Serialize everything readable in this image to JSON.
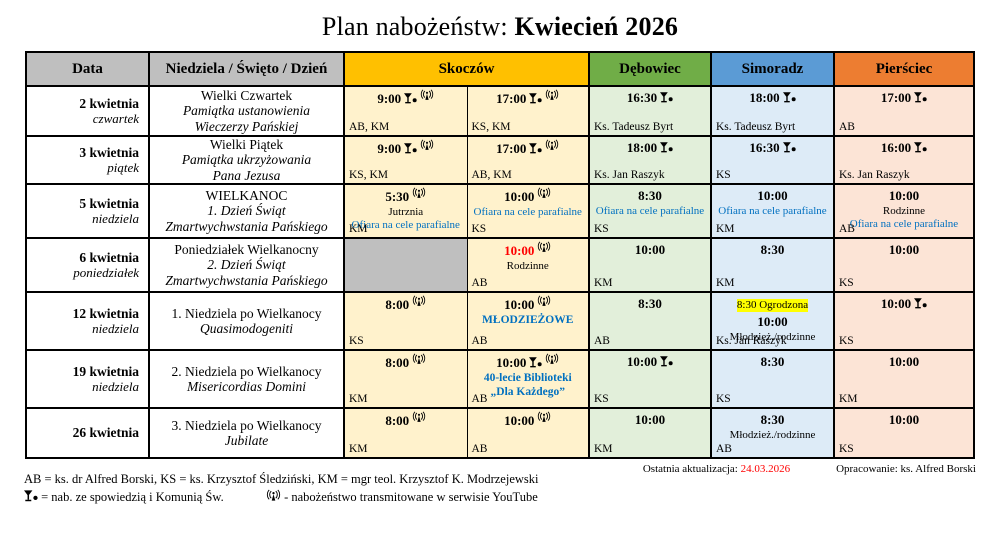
{
  "title": {
    "prefix": "Plan nabożeństw: ",
    "month": "Kwiecień 2026"
  },
  "columns": {
    "data": "Data",
    "day_desc": "Niedziela / Święto / Dzień",
    "parishes": [
      {
        "name": "Skoczów",
        "header_color": "#FFC000",
        "cell_color": "#FFF2CC"
      },
      {
        "name": "Dębowiec",
        "header_color": "#70AD47",
        "cell_color": "#E2EFDA"
      },
      {
        "name": "Simoradz",
        "header_color": "#5B9BD5",
        "cell_color": "#DDEBF7"
      },
      {
        "name": "Pierściec",
        "header_color": "#ED7D31",
        "cell_color": "#FCE4D6"
      }
    ]
  },
  "colors": {
    "note_blue": "#0070C0",
    "alert_red": "#FF0000",
    "highlight_yellow": "#FFFF00",
    "empty_gray": "#BFBFBF"
  },
  "rows": [
    {
      "date": "2 kwietnia",
      "day": "czwartek",
      "desc": [
        {
          "t": "Wielki Czwartek",
          "i": false
        },
        {
          "t": "Pamiątka ustanowienia",
          "i": true
        },
        {
          "t": "Wieczerzy Pańskiej",
          "i": true
        }
      ],
      "cells": [
        {
          "time": "9:00",
          "chalice": true,
          "broadcast": true,
          "who": "AB, KM"
        },
        {
          "time": "17:00",
          "chalice": true,
          "broadcast": true,
          "who": "KS, KM"
        },
        {
          "time": "16:30",
          "chalice": true,
          "who": "Ks. Tadeusz Byrt"
        },
        {
          "time": "18:00",
          "chalice": true,
          "who": "Ks. Tadeusz Byrt"
        },
        {
          "time": "17:00",
          "chalice": true,
          "who": "AB"
        }
      ]
    },
    {
      "date": "3 kwietnia",
      "day": "piątek",
      "desc": [
        {
          "t": "Wielki Piątek",
          "i": false
        },
        {
          "t": "Pamiątka ukrzyżowania",
          "i": true
        },
        {
          "t": "Pana Jezusa",
          "i": true
        }
      ],
      "cells": [
        {
          "time": "9:00",
          "chalice": true,
          "broadcast": true,
          "who": "KS, KM"
        },
        {
          "time": "17:00",
          "chalice": true,
          "broadcast": true,
          "who": "AB, KM"
        },
        {
          "time": "18:00",
          "chalice": true,
          "who": "Ks. Jan Raszyk"
        },
        {
          "time": "16:30",
          "chalice": true,
          "who": "KS"
        },
        {
          "time": "16:00",
          "chalice": true,
          "who": "Ks. Jan Raszyk"
        }
      ]
    },
    {
      "date": "5 kwietnia",
      "day": "niedziela",
      "desc": [
        {
          "t": "WIELKANOC",
          "i": false
        },
        {
          "t": "1. Dzień Świąt",
          "i": true
        },
        {
          "t": "Zmartwychwstania Pańskiego",
          "i": true
        }
      ],
      "cells": [
        {
          "time": "5:30",
          "broadcast": true,
          "lines": [
            {
              "t": "Jutrznia",
              "s": "plain"
            },
            {
              "t": "Ofiara na cele parafialne",
              "s": "blue"
            }
          ],
          "who": "KM"
        },
        {
          "time": "10:00",
          "broadcast": true,
          "lines": [
            {
              "t": "Ofiara na cele parafialne",
              "s": "blue"
            }
          ],
          "who": "KS"
        },
        {
          "time": "8:30",
          "lines": [
            {
              "t": "Ofiara na cele parafialne",
              "s": "blue"
            }
          ],
          "who": "KS"
        },
        {
          "time": "10:00",
          "lines": [
            {
              "t": "Ofiara na cele parafialne",
              "s": "blue"
            }
          ],
          "who": "KM"
        },
        {
          "time": "10:00",
          "lines": [
            {
              "t": "Rodzinne",
              "s": "plain"
            },
            {
              "t": "Ofiara na cele parafialne",
              "s": "blue"
            }
          ],
          "who": "AB"
        }
      ]
    },
    {
      "date": "6 kwietnia",
      "day": "poniedziałek",
      "desc": [
        {
          "t": "Poniedziałek Wielkanocny",
          "i": false
        },
        {
          "t": "2. Dzień Świąt",
          "i": true
        },
        {
          "t": "Zmartwychwstania Pańskiego",
          "i": true
        }
      ],
      "cells": [
        {
          "empty": true
        },
        {
          "time": "10:00",
          "red": true,
          "broadcast": true,
          "lines": [
            {
              "t": "Rodzinne",
              "s": "plain"
            }
          ],
          "who": "AB"
        },
        {
          "time": "10:00",
          "who": "KM"
        },
        {
          "time": "8:30",
          "who": "KM"
        },
        {
          "time": "10:00",
          "who": "KS"
        }
      ]
    },
    {
      "date": "12 kwietnia",
      "day": "niedziela",
      "desc": [
        {
          "t": "1. Niedziela po Wielkanocy",
          "i": false
        },
        {
          "t": "Quasimodogeniti",
          "i": true
        }
      ],
      "cells": [
        {
          "time": "8:00",
          "broadcast": true,
          "who": "KS"
        },
        {
          "time": "10:00",
          "broadcast": true,
          "lines": [
            {
              "t": "MŁODZIEŻOWE",
              "s": "blueBold"
            }
          ],
          "who": "AB"
        },
        {
          "time": "8:30",
          "who": "AB"
        },
        {
          "pre": "8:30 Ogrodzona",
          "time": "10:00",
          "lines": [
            {
              "t": "Młodzież./rodzinne",
              "s": "plain"
            }
          ],
          "who": "Ks. Jan Raszyk"
        },
        {
          "time": "10:00",
          "chalice": true,
          "who": "KS"
        }
      ]
    },
    {
      "date": "19 kwietnia",
      "day": "niedziela",
      "desc": [
        {
          "t": "2. Niedziela po Wielkanocy",
          "i": false
        },
        {
          "t": "Misericordias Domini",
          "i": true
        }
      ],
      "cells": [
        {
          "time": "8:00",
          "broadcast": true,
          "who": "KM"
        },
        {
          "time": "10:00",
          "chalice": true,
          "broadcast": true,
          "lines": [
            {
              "t": "40-lecie Biblioteki",
              "s": "blueBold"
            },
            {
              "t": "„Dla Każdego”",
              "s": "blueBold"
            }
          ],
          "who": "AB"
        },
        {
          "time": "10:00",
          "chalice": true,
          "who": "KS"
        },
        {
          "time": "8:30",
          "who": "KS"
        },
        {
          "time": "10:00",
          "who": "KM"
        }
      ]
    },
    {
      "date": "26 kwietnia",
      "day": "",
      "desc": [
        {
          "t": "3. Niedziela po Wielkanocy",
          "i": false
        },
        {
          "t": "Jubilate",
          "i": true
        }
      ],
      "cells": [
        {
          "time": "8:00",
          "broadcast": true,
          "who": "KM"
        },
        {
          "time": "10:00",
          "broadcast": true,
          "who": "AB"
        },
        {
          "time": "10:00",
          "who": "KM"
        },
        {
          "time": "8:30",
          "lines": [
            {
              "t": "Młodzież./rodzinne",
              "s": "plain"
            }
          ],
          "who": "AB"
        },
        {
          "time": "10:00",
          "who": "KS"
        }
      ]
    }
  ],
  "legend": {
    "abbr": "AB = ks. dr Alfred Borski, KS = ks. Krzysztof Śledziński, KM = mgr teol. Krzysztof K. Modrzejewski",
    "chalice": "= nab. ze spowiedzią i Komunią Św.",
    "broadcast": "- nabożeństwo transmitowane w serwisie YouTube"
  },
  "footer": {
    "updated_label": "Ostatnia aktualizacja:",
    "updated_date": "24.03.2026",
    "author": "Opracowanie: ks. Alfred Borski"
  }
}
